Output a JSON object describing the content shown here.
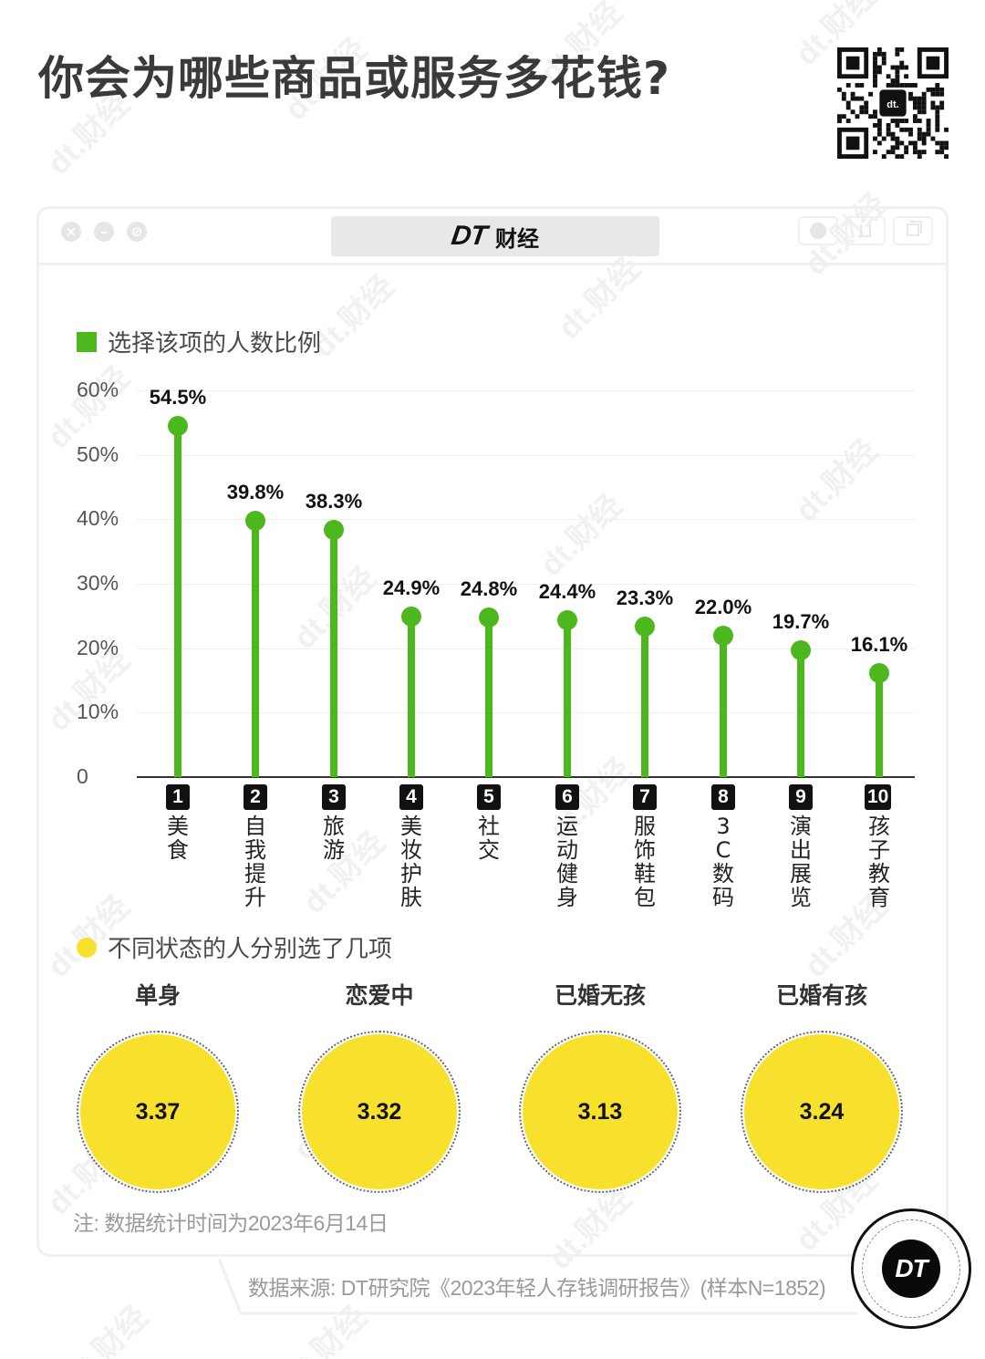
{
  "header": {
    "title": "你会为哪些商品或服务多花钱?",
    "qr_icon": "qr-code-icon"
  },
  "window": {
    "brand_dt": "DT",
    "brand_cn": "财经",
    "left_buttons": [
      "close-icon",
      "minimize-icon",
      "block-icon"
    ],
    "right_buttons": [
      "record-icon",
      "share-icon",
      "copy-icon"
    ]
  },
  "watermark": "dt.财经",
  "legend1": {
    "label": "选择该项的人数比例",
    "color": "#4cb81e"
  },
  "legend2": {
    "label": "不同状态的人分别选了几项",
    "color": "#f7e12c"
  },
  "chart_data": [
    {
      "type": "lollipop",
      "title": "选择该项的人数比例",
      "xlabel": "",
      "ylabel": "",
      "ylim": [
        0,
        60
      ],
      "yticks": [
        "0",
        "10%",
        "20%",
        "30%",
        "40%",
        "50%",
        "60%"
      ],
      "grid": true,
      "legend_position": "top-left",
      "color": "#4cb81e",
      "categories": [
        "美食",
        "自我提升",
        "旅游",
        "美妆护肤",
        "社交",
        "运动健身",
        "服饰鞋包",
        "3C 数码",
        "演出展览",
        "孩子教育"
      ],
      "ranks": [
        "1",
        "2",
        "3",
        "4",
        "5",
        "6",
        "7",
        "8",
        "9",
        "10"
      ],
      "values": [
        54.5,
        39.8,
        38.3,
        24.9,
        24.8,
        24.4,
        23.3,
        22.0,
        19.7,
        16.1
      ],
      "value_labels": [
        "54.5%",
        "39.8%",
        "38.3%",
        "24.9%",
        "24.8%",
        "24.4%",
        "23.3%",
        "22.0%",
        "19.7%",
        "16.1%"
      ]
    },
    {
      "type": "bubble",
      "title": "不同状态的人分别选了几项",
      "color": "#f7e12c",
      "categories": [
        "单身",
        "恋爱中",
        "已婚无孩",
        "已婚有孩"
      ],
      "values": [
        3.37,
        3.32,
        3.13,
        3.24
      ],
      "value_labels": [
        "3.37",
        "3.32",
        "3.13",
        "3.24"
      ]
    }
  ],
  "footer": {
    "note": "注: 数据统计时间为2023年6月14日",
    "source": "数据来源: DT研究院《2023年轻人存钱调研报告》(样本N=1852)",
    "logo": "DT"
  }
}
